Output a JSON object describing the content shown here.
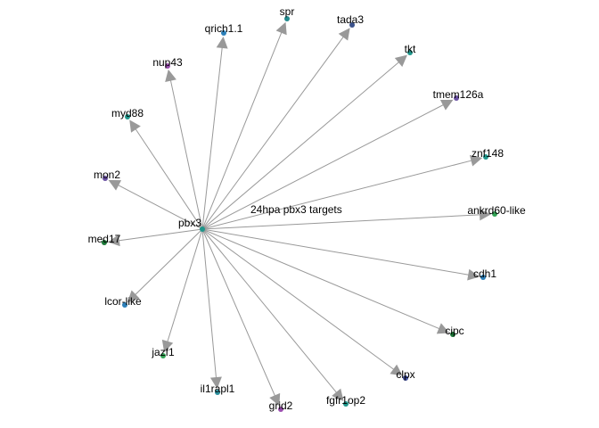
{
  "title": "24hpa pbx3 targets",
  "source": {
    "label": "pbx3",
    "color": "#1f968b"
  },
  "targets": [
    {
      "label": "spr",
      "color": "#238a8d"
    },
    {
      "label": "tada3",
      "color": "#3b528b"
    },
    {
      "label": "tkt",
      "color": "#1f968b"
    },
    {
      "label": "tmem126a",
      "color": "#6a51a3"
    },
    {
      "label": "znf148",
      "color": "#1f968b"
    },
    {
      "label": "ankrd60-like",
      "color": "#31a354"
    },
    {
      "label": "cdh1",
      "color": "#2c7fb8"
    },
    {
      "label": "cipc",
      "color": "#1b7837"
    },
    {
      "label": "clpx",
      "color": "#3f4d9a"
    },
    {
      "label": "fgfr1op2",
      "color": "#1f968b"
    },
    {
      "label": "grid2",
      "color": "#9b4fb0"
    },
    {
      "label": "il1rapl1",
      "color": "#2a8d9b"
    },
    {
      "label": "jazf1",
      "color": "#31a354"
    },
    {
      "label": "lcor-like",
      "color": "#2c7fb8"
    },
    {
      "label": "med17",
      "color": "#1b7837"
    },
    {
      "label": "mon2",
      "color": "#6a51a3"
    },
    {
      "label": "myd88",
      "color": "#1f968b"
    },
    {
      "label": "nup43",
      "color": "#9b4fb0"
    },
    {
      "label": "qrich1.1",
      "color": "#2c7fb8"
    }
  ],
  "edge_color": "#999999"
}
